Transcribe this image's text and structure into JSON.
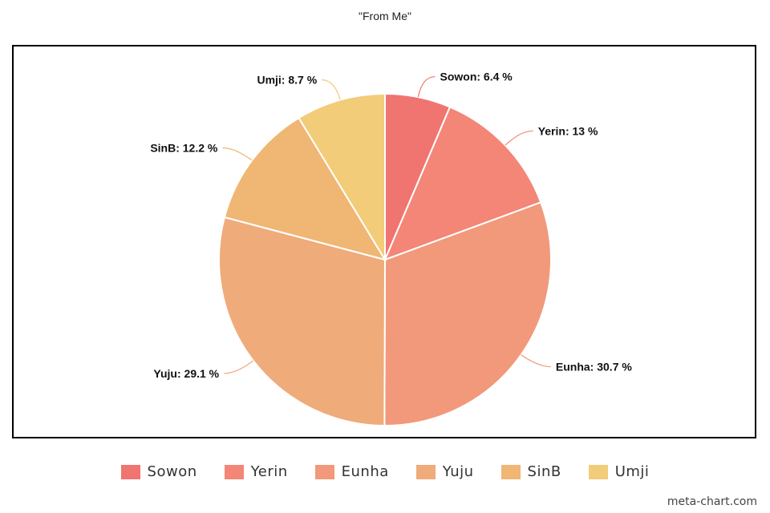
{
  "chart_data": {
    "type": "pie",
    "title": "\"From Me\"",
    "categories": [
      "Sowon",
      "Yerin",
      "Eunha",
      "Yuju",
      "SinB",
      "Umji"
    ],
    "values": [
      6.4,
      13,
      30.7,
      29.1,
      12.2,
      8.7
    ],
    "value_labels": [
      "Sowon: 6.4 %",
      "Yerin: 13 %",
      "Eunha: 30.7 %",
      "Yuju: 29.1 %",
      "SinB: 12.2 %",
      "Umji: 8.7 %"
    ],
    "colors": [
      "#f07470",
      "#f38677",
      "#f1997a",
      "#efab7a",
      "#f0b673",
      "#f2cc78"
    ],
    "legend_position": "bottom-center"
  },
  "watermark": "meta-chart.com"
}
